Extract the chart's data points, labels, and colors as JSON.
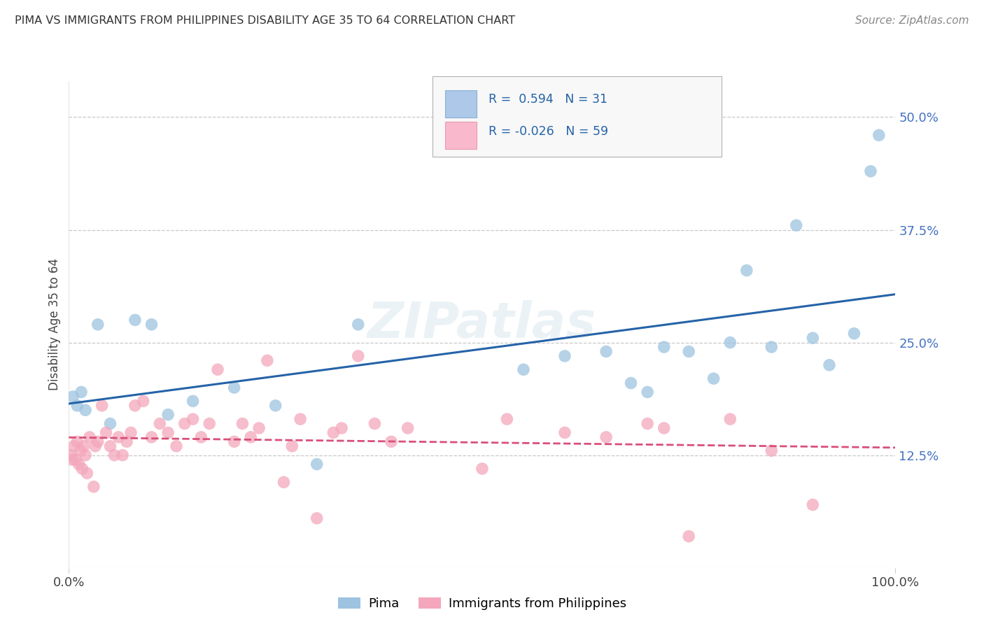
{
  "title": "PIMA VS IMMIGRANTS FROM PHILIPPINES DISABILITY AGE 35 TO 64 CORRELATION CHART",
  "source": "Source: ZipAtlas.com",
  "ylabel": "Disability Age 35 to 64",
  "legend_labels": [
    "Pima",
    "Immigrants from Philippines"
  ],
  "R_pima": 0.594,
  "N_pima": 31,
  "R_phil": -0.026,
  "N_phil": 59,
  "pima_color": "#9dc3e0",
  "phil_color": "#f4a7bc",
  "pima_line_color": "#2563a8",
  "phil_line_color": "#d94f7a",
  "background_color": "#ffffff",
  "ytick_vals": [
    12.5,
    25.0,
    37.5,
    50.0
  ],
  "ytick_labels": [
    "12.5%",
    "25.0%",
    "37.5%",
    "50.0%"
  ],
  "pima_x": [
    0.5,
    1.0,
    1.5,
    2.0,
    3.5,
    5.0,
    8.0,
    10.0,
    12.0,
    15.0,
    20.0,
    25.0,
    30.0,
    35.0,
    55.0,
    60.0,
    65.0,
    68.0,
    70.0,
    72.0,
    75.0,
    78.0,
    80.0,
    82.0,
    85.0,
    88.0,
    90.0,
    92.0,
    95.0,
    97.0,
    98.0
  ],
  "pima_y": [
    19.0,
    18.0,
    19.5,
    17.5,
    27.0,
    16.0,
    27.5,
    27.0,
    17.0,
    18.5,
    20.0,
    18.0,
    11.5,
    27.0,
    22.0,
    23.5,
    24.0,
    20.5,
    19.5,
    24.5,
    24.0,
    21.0,
    25.0,
    33.0,
    24.5,
    38.0,
    25.5,
    22.5,
    26.0,
    44.0,
    48.0
  ],
  "phil_x": [
    0.2,
    0.4,
    0.6,
    0.8,
    1.0,
    1.2,
    1.4,
    1.6,
    1.8,
    2.0,
    2.2,
    2.5,
    3.0,
    3.2,
    3.5,
    4.0,
    4.5,
    5.0,
    5.5,
    6.0,
    6.5,
    7.0,
    7.5,
    8.0,
    9.0,
    10.0,
    11.0,
    12.0,
    13.0,
    14.0,
    15.0,
    16.0,
    17.0,
    18.0,
    20.0,
    21.0,
    22.0,
    23.0,
    24.0,
    26.0,
    27.0,
    28.0,
    30.0,
    32.0,
    33.0,
    35.0,
    37.0,
    39.0,
    41.0,
    50.0,
    53.0,
    60.0,
    65.0,
    70.0,
    72.0,
    75.0,
    80.0,
    85.0,
    90.0
  ],
  "phil_y": [
    12.5,
    12.0,
    13.5,
    12.0,
    14.0,
    11.5,
    13.0,
    11.0,
    13.5,
    12.5,
    10.5,
    14.5,
    9.0,
    13.5,
    14.0,
    18.0,
    15.0,
    13.5,
    12.5,
    14.5,
    12.5,
    14.0,
    15.0,
    18.0,
    18.5,
    14.5,
    16.0,
    15.0,
    13.5,
    16.0,
    16.5,
    14.5,
    16.0,
    22.0,
    14.0,
    16.0,
    14.5,
    15.5,
    23.0,
    9.5,
    13.5,
    16.5,
    5.5,
    15.0,
    15.5,
    23.5,
    16.0,
    14.0,
    15.5,
    11.0,
    16.5,
    15.0,
    14.5,
    16.0,
    15.5,
    3.5,
    16.5,
    13.0,
    7.0
  ]
}
